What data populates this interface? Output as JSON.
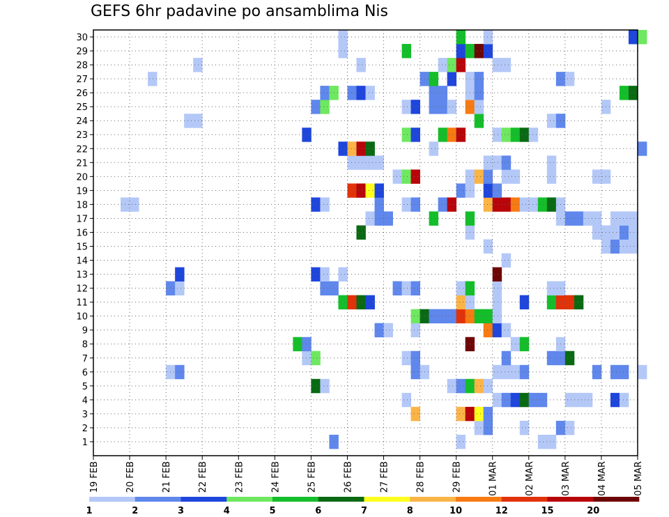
{
  "chart_data": {
    "type": "heatmap",
    "title": "GEFS 6hr padavine po ansamblima Nis",
    "xlabel": "",
    "ylabel": "",
    "x_tick_labels": [
      "19 FEB",
      "20 FEB",
      "21 FEB",
      "22 FEB",
      "23 FEB",
      "24 FEB",
      "25 FEB",
      "26 FEB",
      "27 FEB",
      "28 FEB",
      "29 FEB",
      "01 MAR",
      "02 MAR",
      "03 MAR",
      "04 MAR",
      "05 MAR"
    ],
    "y_tick_labels": [
      "1",
      "2",
      "3",
      "4",
      "5",
      "6",
      "7",
      "8",
      "9",
      "10",
      "11",
      "12",
      "13",
      "14",
      "15",
      "16",
      "17",
      "18",
      "19",
      "20",
      "21",
      "22",
      "23",
      "24",
      "25",
      "26",
      "27",
      "28",
      "29",
      "30"
    ],
    "grid": true,
    "steps_per_day": 4,
    "colorbar": {
      "boundaries": [
        "1",
        "2",
        "3",
        "4",
        "5",
        "6",
        "7",
        "8",
        "10",
        "12",
        "15",
        "20"
      ],
      "colors": [
        "#b4c8f8",
        "#5f87ec",
        "#1e46dc",
        "#6ee860",
        "#14be2a",
        "#0a6a14",
        "#ffff1e",
        "#fbb446",
        "#f77b12",
        "#e1320a",
        "#b8050a",
        "#6e0505"
      ]
    },
    "members": [
      {
        "member": 1,
        "cells": [
          [
            26,
            1
          ],
          [
            40,
            0
          ],
          [
            49,
            0
          ],
          [
            50,
            0
          ]
        ]
      },
      {
        "member": 2,
        "cells": [
          [
            42,
            0
          ],
          [
            43,
            1
          ],
          [
            47,
            0
          ],
          [
            51,
            1
          ],
          [
            52,
            0
          ]
        ]
      },
      {
        "member": 3,
        "cells": [
          [
            35,
            7
          ],
          [
            40,
            7
          ],
          [
            41,
            10
          ],
          [
            42,
            6
          ],
          [
            43,
            1
          ]
        ]
      },
      {
        "member": 4,
        "cells": [
          [
            34,
            0
          ],
          [
            44,
            0
          ],
          [
            45,
            1
          ],
          [
            46,
            2
          ],
          [
            47,
            5
          ],
          [
            48,
            1
          ],
          [
            49,
            1
          ],
          [
            52,
            0
          ],
          [
            53,
            0
          ],
          [
            54,
            0
          ],
          [
            57,
            2
          ],
          [
            58,
            0
          ]
        ]
      },
      {
        "member": 5,
        "cells": [
          [
            24,
            5
          ],
          [
            25,
            0
          ],
          [
            39,
            0
          ],
          [
            40,
            1
          ],
          [
            41,
            4
          ],
          [
            42,
            7
          ],
          [
            43,
            0
          ]
        ]
      },
      {
        "member": 6,
        "cells": [
          [
            8,
            0
          ],
          [
            9,
            1
          ],
          [
            35,
            1
          ],
          [
            36,
            0
          ],
          [
            44,
            0
          ],
          [
            45,
            0
          ],
          [
            46,
            0
          ],
          [
            47,
            1
          ],
          [
            55,
            1
          ],
          [
            57,
            1
          ],
          [
            58,
            1
          ],
          [
            60,
            0
          ]
        ]
      },
      {
        "member": 7,
        "cells": [
          [
            23,
            0
          ],
          [
            24,
            3
          ],
          [
            34,
            0
          ],
          [
            35,
            1
          ],
          [
            45,
            1
          ],
          [
            50,
            1
          ],
          [
            51,
            1
          ],
          [
            52,
            5
          ]
        ]
      },
      {
        "member": 8,
        "cells": [
          [
            22,
            4
          ],
          [
            23,
            1
          ],
          [
            41,
            11
          ],
          [
            46,
            0
          ],
          [
            47,
            4
          ],
          [
            51,
            0
          ]
        ]
      },
      {
        "member": 9,
        "cells": [
          [
            31,
            1
          ],
          [
            32,
            0
          ],
          [
            35,
            0
          ],
          [
            43,
            8
          ],
          [
            44,
            2
          ],
          [
            45,
            0
          ]
        ]
      },
      {
        "member": 10,
        "cells": [
          [
            35,
            3
          ],
          [
            36,
            5
          ],
          [
            37,
            1
          ],
          [
            38,
            1
          ],
          [
            39,
            1
          ],
          [
            40,
            9
          ],
          [
            41,
            8
          ],
          [
            42,
            4
          ],
          [
            43,
            4
          ],
          [
            44,
            0
          ]
        ]
      },
      {
        "member": 11,
        "cells": [
          [
            27,
            4
          ],
          [
            28,
            9
          ],
          [
            29,
            5
          ],
          [
            30,
            2
          ],
          [
            40,
            7
          ],
          [
            41,
            0
          ],
          [
            44,
            0
          ],
          [
            47,
            2
          ],
          [
            50,
            4
          ],
          [
            51,
            9
          ],
          [
            52,
            9
          ],
          [
            53,
            5
          ]
        ]
      },
      {
        "member": 12,
        "cells": [
          [
            8,
            1
          ],
          [
            9,
            0
          ],
          [
            25,
            1
          ],
          [
            26,
            1
          ],
          [
            33,
            1
          ],
          [
            34,
            0
          ],
          [
            35,
            1
          ],
          [
            40,
            0
          ],
          [
            41,
            4
          ],
          [
            44,
            0
          ],
          [
            50,
            0
          ],
          [
            51,
            0
          ]
        ]
      },
      {
        "member": 13,
        "cells": [
          [
            9,
            2
          ],
          [
            24,
            2
          ],
          [
            25,
            0
          ],
          [
            27,
            0
          ],
          [
            44,
            11
          ]
        ]
      },
      {
        "member": 14,
        "cells": [
          [
            45,
            0
          ]
        ]
      },
      {
        "member": 15,
        "cells": [
          [
            43,
            0
          ],
          [
            56,
            0
          ],
          [
            57,
            1
          ],
          [
            58,
            0
          ],
          [
            59,
            0
          ]
        ]
      },
      {
        "member": 16,
        "cells": [
          [
            29,
            5
          ],
          [
            41,
            0
          ],
          [
            55,
            0
          ],
          [
            56,
            0
          ],
          [
            57,
            0
          ],
          [
            58,
            1
          ],
          [
            59,
            0
          ]
        ]
      },
      {
        "member": 17,
        "cells": [
          [
            30,
            0
          ],
          [
            31,
            1
          ],
          [
            32,
            1
          ],
          [
            37,
            4
          ],
          [
            41,
            4
          ],
          [
            51,
            0
          ],
          [
            52,
            1
          ],
          [
            53,
            1
          ],
          [
            54,
            0
          ],
          [
            55,
            0
          ],
          [
            57,
            0
          ],
          [
            58,
            0
          ],
          [
            59,
            0
          ]
        ]
      },
      {
        "member": 18,
        "cells": [
          [
            3,
            0
          ],
          [
            4,
            0
          ],
          [
            24,
            2
          ],
          [
            25,
            0
          ],
          [
            31,
            1
          ],
          [
            34,
            0
          ],
          [
            35,
            1
          ],
          [
            38,
            1
          ],
          [
            39,
            10
          ],
          [
            43,
            7
          ],
          [
            44,
            10
          ],
          [
            45,
            10
          ],
          [
            46,
            8
          ],
          [
            47,
            0
          ],
          [
            48,
            0
          ],
          [
            49,
            4
          ],
          [
            50,
            5
          ],
          [
            51,
            0
          ]
        ]
      },
      {
        "member": 19,
        "cells": [
          [
            28,
            9
          ],
          [
            29,
            10
          ],
          [
            30,
            6
          ],
          [
            31,
            2
          ],
          [
            40,
            1
          ],
          [
            41,
            0
          ],
          [
            43,
            2
          ],
          [
            44,
            1
          ]
        ]
      },
      {
        "member": 20,
        "cells": [
          [
            33,
            0
          ],
          [
            34,
            3
          ],
          [
            35,
            10
          ],
          [
            41,
            0
          ],
          [
            42,
            7
          ],
          [
            43,
            1
          ],
          [
            45,
            0
          ],
          [
            46,
            0
          ],
          [
            50,
            0
          ],
          [
            55,
            0
          ],
          [
            56,
            0
          ]
        ]
      },
      {
        "member": 21,
        "cells": [
          [
            28,
            0
          ],
          [
            29,
            0
          ],
          [
            30,
            0
          ],
          [
            31,
            0
          ],
          [
            43,
            0
          ],
          [
            44,
            0
          ],
          [
            45,
            1
          ],
          [
            50,
            0
          ]
        ]
      },
      {
        "member": 22,
        "cells": [
          [
            27,
            2
          ],
          [
            28,
            7
          ],
          [
            29,
            10
          ],
          [
            30,
            5
          ],
          [
            37,
            0
          ],
          [
            60,
            1
          ]
        ]
      },
      {
        "member": 23,
        "cells": [
          [
            23,
            2
          ],
          [
            34,
            3
          ],
          [
            35,
            2
          ],
          [
            38,
            4
          ],
          [
            39,
            8
          ],
          [
            40,
            10
          ],
          [
            44,
            0
          ],
          [
            45,
            3
          ],
          [
            46,
            4
          ],
          [
            47,
            5
          ],
          [
            48,
            0
          ]
        ]
      },
      {
        "member": 24,
        "cells": [
          [
            10,
            0
          ],
          [
            11,
            0
          ],
          [
            42,
            4
          ],
          [
            50,
            0
          ],
          [
            51,
            1
          ]
        ]
      },
      {
        "member": 25,
        "cells": [
          [
            24,
            1
          ],
          [
            25,
            3
          ],
          [
            34,
            0
          ],
          [
            35,
            2
          ],
          [
            37,
            1
          ],
          [
            38,
            1
          ],
          [
            39,
            0
          ],
          [
            41,
            8
          ],
          [
            42,
            0
          ],
          [
            56,
            0
          ]
        ]
      },
      {
        "member": 26,
        "cells": [
          [
            25,
            1
          ],
          [
            26,
            3
          ],
          [
            28,
            1
          ],
          [
            29,
            2
          ],
          [
            30,
            0
          ],
          [
            37,
            1
          ],
          [
            38,
            1
          ],
          [
            41,
            0
          ],
          [
            42,
            1
          ],
          [
            58,
            4
          ],
          [
            59,
            5
          ]
        ]
      },
      {
        "member": 27,
        "cells": [
          [
            6,
            0
          ],
          [
            36,
            1
          ],
          [
            37,
            4
          ],
          [
            39,
            2
          ],
          [
            41,
            0
          ],
          [
            42,
            1
          ],
          [
            51,
            1
          ],
          [
            52,
            0
          ]
        ]
      },
      {
        "member": 28,
        "cells": [
          [
            11,
            0
          ],
          [
            29,
            0
          ],
          [
            38,
            0
          ],
          [
            39,
            3
          ],
          [
            40,
            10
          ],
          [
            44,
            0
          ],
          [
            45,
            0
          ]
        ]
      },
      {
        "member": 29,
        "cells": [
          [
            27,
            0
          ],
          [
            34,
            4
          ],
          [
            40,
            2
          ],
          [
            41,
            4
          ],
          [
            42,
            11
          ],
          [
            43,
            2
          ]
        ]
      },
      {
        "member": 30,
        "cells": [
          [
            27,
            0
          ],
          [
            40,
            4
          ],
          [
            43,
            0
          ],
          [
            59,
            2
          ],
          [
            60,
            3
          ]
        ]
      }
    ]
  }
}
